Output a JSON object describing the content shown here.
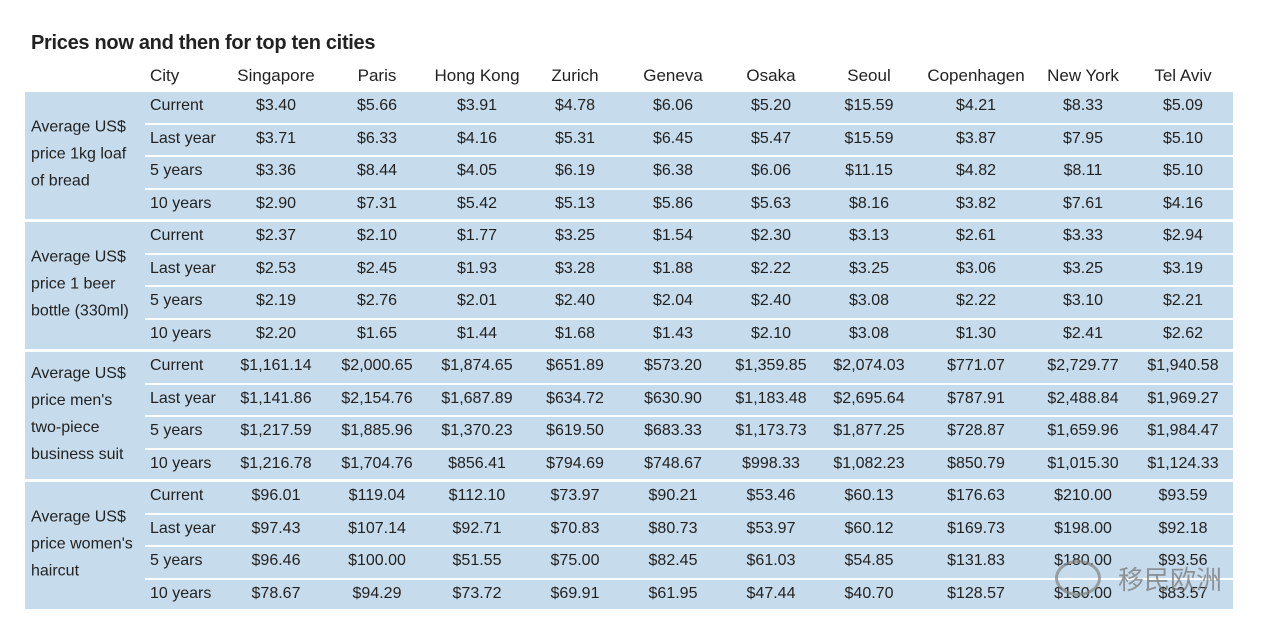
{
  "title": "Prices now and then for top ten cities",
  "table": {
    "header": [
      "City",
      "Singapore",
      "Paris",
      "Hong Kong",
      "Zurich",
      "Geneva",
      "Osaka",
      "Seoul",
      "Copenhagen",
      "New York",
      "Tel Aviv"
    ],
    "groups": [
      {
        "label": "Average US$ price 1kg loaf of bread",
        "rows": [
          [
            "Current",
            "$3.40",
            "$5.66",
            "$3.91",
            "$4.78",
            "$6.06",
            "$5.20",
            "$15.59",
            "$4.21",
            "$8.33",
            "$5.09"
          ],
          [
            "Last year",
            "$3.71",
            "$6.33",
            "$4.16",
            "$5.31",
            "$6.45",
            "$5.47",
            "$15.59",
            "$3.87",
            "$7.95",
            "$5.10"
          ],
          [
            "5 years",
            "$3.36",
            "$8.44",
            "$4.05",
            "$6.19",
            "$6.38",
            "$6.06",
            "$11.15",
            "$4.82",
            "$8.11",
            "$5.10"
          ],
          [
            "10 years",
            "$2.90",
            "$7.31",
            "$5.42",
            "$5.13",
            "$5.86",
            "$5.63",
            "$8.16",
            "$3.82",
            "$7.61",
            "$4.16"
          ]
        ]
      },
      {
        "label": "Average US$ price 1 beer bottle (330ml)",
        "rows": [
          [
            "Current",
            "$2.37",
            "$2.10",
            "$1.77",
            "$3.25",
            "$1.54",
            "$2.30",
            "$3.13",
            "$2.61",
            "$3.33",
            "$2.94"
          ],
          [
            "Last year",
            "$2.53",
            "$2.45",
            "$1.93",
            "$3.28",
            "$1.88",
            "$2.22",
            "$3.25",
            "$3.06",
            "$3.25",
            "$3.19"
          ],
          [
            "5 years",
            "$2.19",
            "$2.76",
            "$2.01",
            "$2.40",
            "$2.04",
            "$2.40",
            "$3.08",
            "$2.22",
            "$3.10",
            "$2.21"
          ],
          [
            "10 years",
            "$2.20",
            "$1.65",
            "$1.44",
            "$1.68",
            "$1.43",
            "$2.10",
            "$3.08",
            "$1.30",
            "$2.41",
            "$2.62"
          ]
        ]
      },
      {
        "label": "Average US$ price men's two-piece business suit",
        "rows": [
          [
            "Current",
            "$1,161.14",
            "$2,000.65",
            "$1,874.65",
            "$651.89",
            "$573.20",
            "$1,359.85",
            "$2,074.03",
            "$771.07",
            "$2,729.77",
            "$1,940.58"
          ],
          [
            "Last year",
            "$1,141.86",
            "$2,154.76",
            "$1,687.89",
            "$634.72",
            "$630.90",
            "$1,183.48",
            "$2,695.64",
            "$787.91",
            "$2,488.84",
            "$1,969.27"
          ],
          [
            "5 years",
            "$1,217.59",
            "$1,885.96",
            "$1,370.23",
            "$619.50",
            "$683.33",
            "$1,173.73",
            "$1,877.25",
            "$728.87",
            "$1,659.96",
            "$1,984.47"
          ],
          [
            "10 years",
            "$1,216.78",
            "$1,704.76",
            "$856.41",
            "$794.69",
            "$748.67",
            "$998.33",
            "$1,082.23",
            "$850.79",
            "$1,015.30",
            "$1,124.33"
          ]
        ]
      },
      {
        "label": "Average US$ price women's haircut",
        "rows": [
          [
            "Current",
            "$96.01",
            "$119.04",
            "$112.10",
            "$73.97",
            "$90.21",
            "$53.46",
            "$60.13",
            "$176.63",
            "$210.00",
            "$93.59"
          ],
          [
            "Last year",
            "$97.43",
            "$107.14",
            "$92.71",
            "$70.83",
            "$80.73",
            "$53.97",
            "$60.12",
            "$169.73",
            "$198.00",
            "$92.18"
          ],
          [
            "5 years",
            "$96.46",
            "$100.00",
            "$51.55",
            "$75.00",
            "$82.45",
            "$61.03",
            "$54.85",
            "$131.83",
            "$180.00",
            "$93.56"
          ],
          [
            "10 years",
            "$78.67",
            "$94.29",
            "$73.72",
            "$69.91",
            "$61.95",
            "$47.44",
            "$40.70",
            "$128.57",
            "$150.00",
            "$83.57"
          ]
        ]
      }
    ]
  },
  "watermark": "移民欧洲"
}
